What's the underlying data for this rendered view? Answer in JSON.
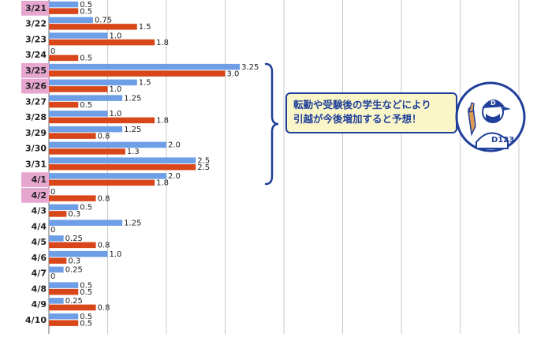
{
  "chart_data": {
    "type": "bar",
    "orientation": "horizontal",
    "categories": [
      "3/21",
      "3/22",
      "3/23",
      "3/24",
      "3/25",
      "3/26",
      "3/27",
      "3/28",
      "3/29",
      "3/30",
      "3/31",
      "4/1",
      "4/2",
      "4/3",
      "4/4",
      "4/5",
      "4/6",
      "4/7",
      "4/8",
      "4/9",
      "4/10"
    ],
    "highlighted_categories": [
      "3/21",
      "3/25",
      "3/26",
      "4/1",
      "4/2"
    ],
    "series": [
      {
        "color": "#6e9ee6",
        "values": [
          0.5,
          0.75,
          1.0,
          0,
          3.25,
          1.5,
          1.25,
          1.0,
          1.25,
          2.0,
          2.5,
          2.0,
          0,
          0.5,
          1.25,
          0.25,
          1.0,
          0.25,
          0.5,
          0.25,
          0.5
        ],
        "labels": [
          "0.5",
          "0.75",
          "1.0",
          "0",
          "3.25",
          "1.5",
          "1.25",
          "1.0",
          "1.25",
          "2.0",
          "2.5",
          "2.0",
          "0",
          "0.5",
          "1.25",
          "0.25",
          "1.0",
          "0.25",
          "0.5",
          "0.25",
          "0.5"
        ]
      },
      {
        "color": "#d8461a",
        "values": [
          0.5,
          1.5,
          1.8,
          0.5,
          3.0,
          1.0,
          0.5,
          1.8,
          0.8,
          1.3,
          2.5,
          1.8,
          0.8,
          0.3,
          0,
          0.8,
          0.3,
          0,
          0.5,
          0.8,
          0.5
        ],
        "labels": [
          "0.5",
          "1.5",
          "1.8",
          "0.5",
          "3.0",
          "1.0",
          "0.5",
          "1.8",
          "0.8",
          "1.3",
          "2.5",
          "1.8",
          "0.8",
          "0.3",
          "0",
          "0.8",
          "0.3",
          "0",
          "0.5",
          "0.8",
          "0.5"
        ]
      }
    ],
    "xlim": [
      0,
      8
    ],
    "grid": true,
    "bracket_categories": [
      "3/25",
      "4/1"
    ],
    "annotation": {
      "lines": [
        "転勤や受験後の学生などにより",
        "引越が今後増加すると予想！"
      ]
    },
    "colors": {
      "highlight": "#e6a7cf",
      "grid": "#c8c8c8",
      "bracket": "#1f3f9a",
      "callout_bg": "#fbf6c8",
      "callout_border": "#1f3f9a"
    }
  },
  "mascot": {
    "cap_text": "D",
    "shirt_text": "D123"
  }
}
